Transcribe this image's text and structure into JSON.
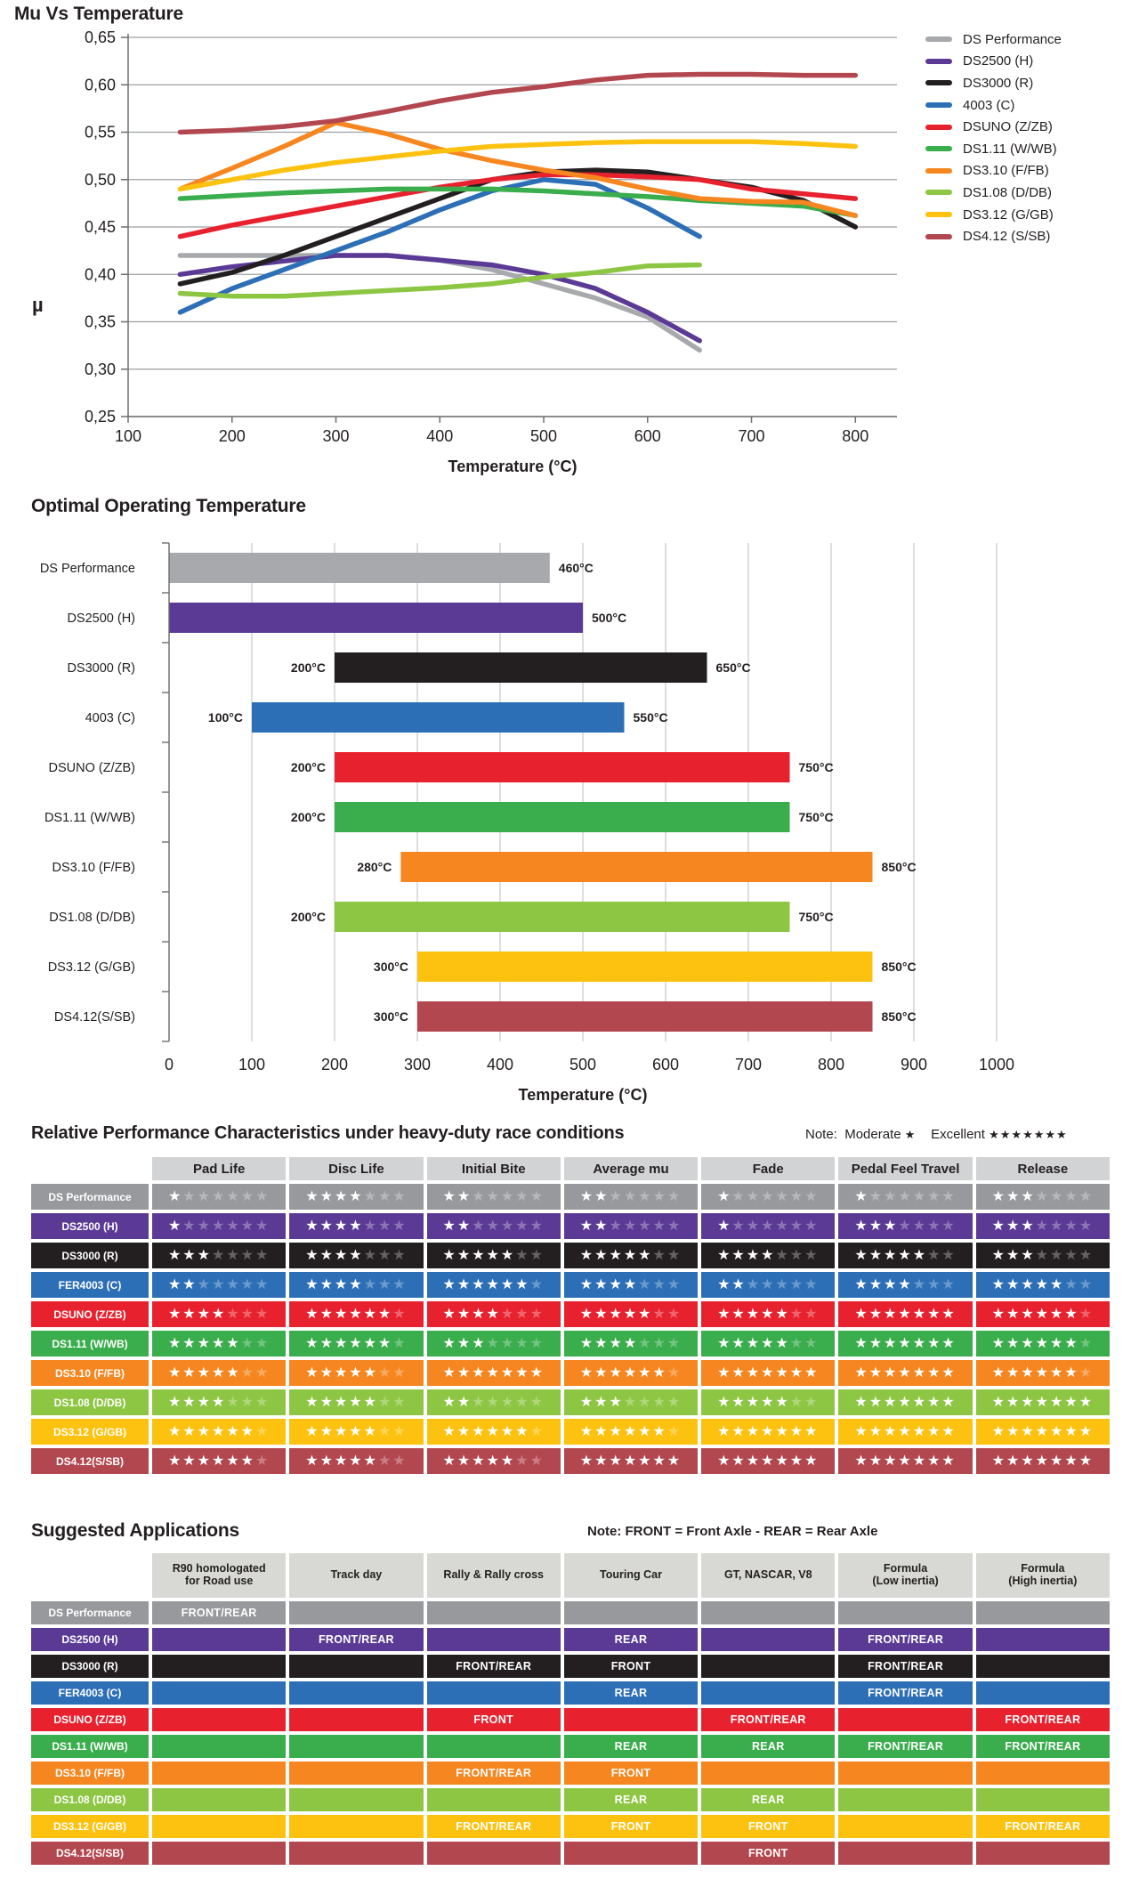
{
  "chart_data": [
    {
      "type": "line",
      "title": "Mu Vs Temperature",
      "xlabel": "Temperature (°C)",
      "ylabel": "µ",
      "xlim": [
        100,
        840
      ],
      "ylim": [
        0.25,
        0.65
      ],
      "xticks": [
        100,
        200,
        300,
        400,
        500,
        600,
        700,
        800
      ],
      "ytick_values": [
        0.65,
        0.6,
        0.55,
        0.5,
        0.45,
        0.4,
        0.35,
        0.3,
        0.25
      ],
      "ytick_labels": [
        "0,65",
        "0,60",
        "0,55",
        "0,50",
        "0,45",
        "0,40",
        "0,35",
        "0,30",
        "0,25"
      ],
      "grid": "horizontal",
      "legend_position": "right",
      "series": [
        {
          "name": "DS Performance",
          "color": "#a7a9ac",
          "points": [
            [
              150,
              0.42
            ],
            [
              250,
              0.42
            ],
            [
              350,
              0.42
            ],
            [
              400,
              0.415
            ],
            [
              450,
              0.405
            ],
            [
              500,
              0.39
            ],
            [
              550,
              0.375
            ],
            [
              600,
              0.355
            ],
            [
              650,
              0.32
            ]
          ]
        },
        {
          "name": "DS2500 (H)",
          "color": "#5b3a96",
          "points": [
            [
              150,
              0.4
            ],
            [
              200,
              0.408
            ],
            [
              250,
              0.414
            ],
            [
              300,
              0.42
            ],
            [
              350,
              0.42
            ],
            [
              400,
              0.415
            ],
            [
              450,
              0.41
            ],
            [
              500,
              0.4
            ],
            [
              550,
              0.385
            ],
            [
              600,
              0.36
            ],
            [
              650,
              0.33
            ]
          ]
        },
        {
          "name": "DS3000 (R)",
          "color": "#231f20",
          "points": [
            [
              150,
              0.39
            ],
            [
              200,
              0.402
            ],
            [
              250,
              0.42
            ],
            [
              300,
              0.44
            ],
            [
              350,
              0.46
            ],
            [
              400,
              0.48
            ],
            [
              450,
              0.5
            ],
            [
              500,
              0.508
            ],
            [
              550,
              0.51
            ],
            [
              600,
              0.508
            ],
            [
              650,
              0.5
            ],
            [
              700,
              0.492
            ],
            [
              750,
              0.478
            ],
            [
              800,
              0.45
            ]
          ]
        },
        {
          "name": "4003 (C)",
          "color": "#2d6fb7",
          "points": [
            [
              150,
              0.36
            ],
            [
              200,
              0.385
            ],
            [
              250,
              0.405
            ],
            [
              300,
              0.425
            ],
            [
              350,
              0.445
            ],
            [
              400,
              0.468
            ],
            [
              450,
              0.488
            ],
            [
              500,
              0.5
            ],
            [
              550,
              0.495
            ],
            [
              600,
              0.47
            ],
            [
              650,
              0.44
            ]
          ]
        },
        {
          "name": "DSUNO (Z/ZB)",
          "color": "#e8212e",
          "points": [
            [
              150,
              0.44
            ],
            [
              200,
              0.452
            ],
            [
              250,
              0.462
            ],
            [
              300,
              0.472
            ],
            [
              350,
              0.482
            ],
            [
              400,
              0.492
            ],
            [
              450,
              0.5
            ],
            [
              500,
              0.505
            ],
            [
              550,
              0.505
            ],
            [
              600,
              0.503
            ],
            [
              650,
              0.5
            ],
            [
              700,
              0.49
            ],
            [
              750,
              0.485
            ],
            [
              800,
              0.48
            ]
          ]
        },
        {
          "name": "DS1.11 (W/WB)",
          "color": "#3aad4c",
          "points": [
            [
              150,
              0.48
            ],
            [
              200,
              0.483
            ],
            [
              250,
              0.486
            ],
            [
              300,
              0.488
            ],
            [
              350,
              0.49
            ],
            [
              400,
              0.49
            ],
            [
              450,
              0.49
            ],
            [
              500,
              0.488
            ],
            [
              550,
              0.485
            ],
            [
              600,
              0.482
            ],
            [
              650,
              0.478
            ],
            [
              700,
              0.475
            ],
            [
              750,
              0.472
            ],
            [
              800,
              0.462
            ]
          ]
        },
        {
          "name": "DS3.10 (F/FB)",
          "color": "#f6861f",
          "points": [
            [
              150,
              0.49
            ],
            [
              200,
              0.512
            ],
            [
              250,
              0.535
            ],
            [
              300,
              0.56
            ],
            [
              350,
              0.548
            ],
            [
              400,
              0.532
            ],
            [
              450,
              0.52
            ],
            [
              500,
              0.51
            ],
            [
              550,
              0.502
            ],
            [
              600,
              0.49
            ],
            [
              650,
              0.48
            ],
            [
              700,
              0.477
            ],
            [
              750,
              0.476
            ],
            [
              800,
              0.462
            ]
          ]
        },
        {
          "name": "DS1.08 (D/DB)",
          "color": "#8dc642",
          "points": [
            [
              150,
              0.38
            ],
            [
              200,
              0.377
            ],
            [
              250,
              0.377
            ],
            [
              300,
              0.38
            ],
            [
              350,
              0.383
            ],
            [
              400,
              0.386
            ],
            [
              450,
              0.39
            ],
            [
              500,
              0.397
            ],
            [
              550,
              0.402
            ],
            [
              600,
              0.409
            ],
            [
              650,
              0.41
            ]
          ]
        },
        {
          "name": "DS3.12 (G/GB)",
          "color": "#fcc20f",
          "points": [
            [
              150,
              0.49
            ],
            [
              200,
              0.5
            ],
            [
              250,
              0.51
            ],
            [
              300,
              0.518
            ],
            [
              350,
              0.524
            ],
            [
              400,
              0.53
            ],
            [
              450,
              0.535
            ],
            [
              500,
              0.537
            ],
            [
              550,
              0.539
            ],
            [
              600,
              0.54
            ],
            [
              650,
              0.54
            ],
            [
              700,
              0.54
            ],
            [
              750,
              0.538
            ],
            [
              800,
              0.535
            ]
          ]
        },
        {
          "name": "DS4.12 (S/SB)",
          "color": "#b2474f",
          "points": [
            [
              150,
              0.55
            ],
            [
              200,
              0.552
            ],
            [
              250,
              0.556
            ],
            [
              300,
              0.562
            ],
            [
              350,
              0.572
            ],
            [
              400,
              0.583
            ],
            [
              450,
              0.592
            ],
            [
              500,
              0.598
            ],
            [
              550,
              0.605
            ],
            [
              600,
              0.61
            ],
            [
              650,
              0.611
            ],
            [
              700,
              0.611
            ],
            [
              750,
              0.61
            ],
            [
              800,
              0.61
            ]
          ]
        }
      ]
    },
    {
      "type": "bar",
      "title": "Optimal Operating Temperature",
      "xlabel": "Temperature (°C)",
      "orientation": "horizontal",
      "xlim": [
        0,
        1000
      ],
      "xticks": [
        0,
        100,
        200,
        300,
        400,
        500,
        600,
        700,
        800,
        900,
        1000
      ],
      "grid": "vertical",
      "bars": [
        {
          "name": "DS Performance",
          "color": "#a7a9ac",
          "range": [
            0,
            460
          ],
          "min_label": "",
          "max_label": "460°C"
        },
        {
          "name": "DS2500 (H)",
          "color": "#5b3a96",
          "range": [
            0,
            500
          ],
          "min_label": "",
          "max_label": "500°C"
        },
        {
          "name": "DS3000 (R)",
          "color": "#231f20",
          "range": [
            200,
            650
          ],
          "min_label": "200°C",
          "max_label": "650°C"
        },
        {
          "name": "4003 (C)",
          "color": "#2d6fb7",
          "range": [
            100,
            550
          ],
          "min_label": "100°C",
          "max_label": "550°C"
        },
        {
          "name": "DSUNO (Z/ZB)",
          "color": "#e8212e",
          "range": [
            200,
            750
          ],
          "min_label": "200°C",
          "max_label": "750°C"
        },
        {
          "name": "DS1.11 (W/WB)",
          "color": "#3aad4c",
          "range": [
            200,
            750
          ],
          "min_label": "200°C",
          "max_label": "750°C"
        },
        {
          "name": "DS3.10 (F/FB)",
          "color": "#f6861f",
          "range": [
            280,
            850
          ],
          "min_label": "280°C",
          "max_label": "850°C"
        },
        {
          "name": "DS1.08 (D/DB)",
          "color": "#8dc642",
          "range": [
            200,
            750
          ],
          "min_label": "200°C",
          "max_label": "750°C"
        },
        {
          "name": "DS3.12 (G/GB)",
          "color": "#fcc20f",
          "range": [
            300,
            850
          ],
          "min_label": "300°C",
          "max_label": "850°C"
        },
        {
          "name": "DS4.12(S/SB)",
          "color": "#b2474f",
          "range": [
            300,
            850
          ],
          "min_label": "300°C",
          "max_label": "850°C"
        }
      ]
    },
    {
      "type": "table",
      "title": "Relative Performance Characteristics under heavy-duty race conditions",
      "note": {
        "label": "Note:",
        "moderate_label": "Moderate",
        "moderate_stars": 1,
        "excellent_label": "Excellent",
        "excellent_stars": 7
      },
      "max_stars": 7,
      "star_char": "★",
      "columns": [
        "Pad Life",
        "Disc Life",
        "Initial Bite",
        "Average mu",
        "Fade",
        "Pedal Feel Travel",
        "Release"
      ],
      "rows": [
        {
          "name": "DS Performance",
          "color": "#97999c",
          "ratings": [
            1,
            4,
            2,
            2,
            1,
            1,
            3
          ]
        },
        {
          "name": "DS2500 (H)",
          "color": "#5b3a96",
          "ratings": [
            1,
            4,
            2,
            2,
            1,
            3,
            3
          ]
        },
        {
          "name": "DS3000 (R)",
          "color": "#231f20",
          "ratings": [
            3,
            4,
            5,
            5,
            4,
            5,
            3
          ]
        },
        {
          "name": "FER4003 (C)",
          "color": "#2d6fb7",
          "ratings": [
            2,
            4,
            6,
            4,
            2,
            4,
            5
          ]
        },
        {
          "name": "DSUNO (Z/ZB)",
          "color": "#e8212e",
          "ratings": [
            4,
            6,
            4,
            5,
            5,
            7,
            6
          ]
        },
        {
          "name": "DS1.11 (W/WB)",
          "color": "#3aad4c",
          "ratings": [
            5,
            6,
            3,
            4,
            5,
            7,
            6
          ]
        },
        {
          "name": "DS3.10 (F/FB)",
          "color": "#f6861f",
          "ratings": [
            5,
            5,
            7,
            6,
            7,
            7,
            6
          ]
        },
        {
          "name": "DS1.08 (D/DB)",
          "color": "#8dc642",
          "ratings": [
            4,
            5,
            2,
            3,
            5,
            7,
            7
          ]
        },
        {
          "name": "DS3.12 (G/GB)",
          "color": "#fcc20f",
          "ratings": [
            6,
            5,
            6,
            6,
            7,
            7,
            7
          ]
        },
        {
          "name": "DS4.12(S/SB)",
          "color": "#b2474f",
          "ratings": [
            6,
            5,
            5,
            7,
            7,
            7,
            7
          ]
        }
      ]
    },
    {
      "type": "table",
      "title": "Suggested Applications",
      "note": "Note: FRONT = Front Axle - REAR = Rear Axle",
      "columns": [
        "R90 homologated\nfor Road use",
        "Track day",
        "Rally & Rally cross",
        "Touring Car",
        "GT, NASCAR, V8",
        "Formula\n(Low inertia)",
        "Formula\n(High inertia)"
      ],
      "rows": [
        {
          "name": "DS Performance",
          "color": "#97999c",
          "cells": [
            "FRONT/REAR",
            "",
            "",
            "",
            "",
            "",
            ""
          ]
        },
        {
          "name": "DS2500 (H)",
          "color": "#5b3a96",
          "cells": [
            "",
            "FRONT/REAR",
            "",
            "REAR",
            "",
            "FRONT/REAR",
            ""
          ]
        },
        {
          "name": "DS3000 (R)",
          "color": "#231f20",
          "cells": [
            "",
            "",
            "FRONT/REAR",
            "FRONT",
            "",
            "FRONT/REAR",
            ""
          ]
        },
        {
          "name": "FER4003 (C)",
          "color": "#2d6fb7",
          "cells": [
            "",
            "",
            "",
            "REAR",
            "",
            "FRONT/REAR",
            ""
          ]
        },
        {
          "name": "DSUNO (Z/ZB)",
          "color": "#e8212e",
          "cells": [
            "",
            "",
            "FRONT",
            "",
            "FRONT/REAR",
            "",
            "FRONT/REAR"
          ]
        },
        {
          "name": "DS1.11 (W/WB)",
          "color": "#3aad4c",
          "cells": [
            "",
            "",
            "",
            "REAR",
            "REAR",
            "FRONT/REAR",
            "FRONT/REAR"
          ]
        },
        {
          "name": "DS3.10 (F/FB)",
          "color": "#f6861f",
          "cells": [
            "",
            "",
            "FRONT/REAR",
            "FRONT",
            "",
            "",
            ""
          ]
        },
        {
          "name": "DS1.08 (D/DB)",
          "color": "#8dc642",
          "cells": [
            "",
            "",
            "",
            "REAR",
            "REAR",
            "",
            ""
          ]
        },
        {
          "name": "DS3.12 (G/GB)",
          "color": "#fcc20f",
          "cells": [
            "",
            "",
            "FRONT/REAR",
            "FRONT",
            "FRONT",
            "",
            "FRONT/REAR"
          ]
        },
        {
          "name": "DS4.12(S/SB)",
          "color": "#b2474f",
          "cells": [
            "",
            "",
            "",
            "",
            "FRONT",
            "",
            ""
          ]
        }
      ]
    }
  ]
}
